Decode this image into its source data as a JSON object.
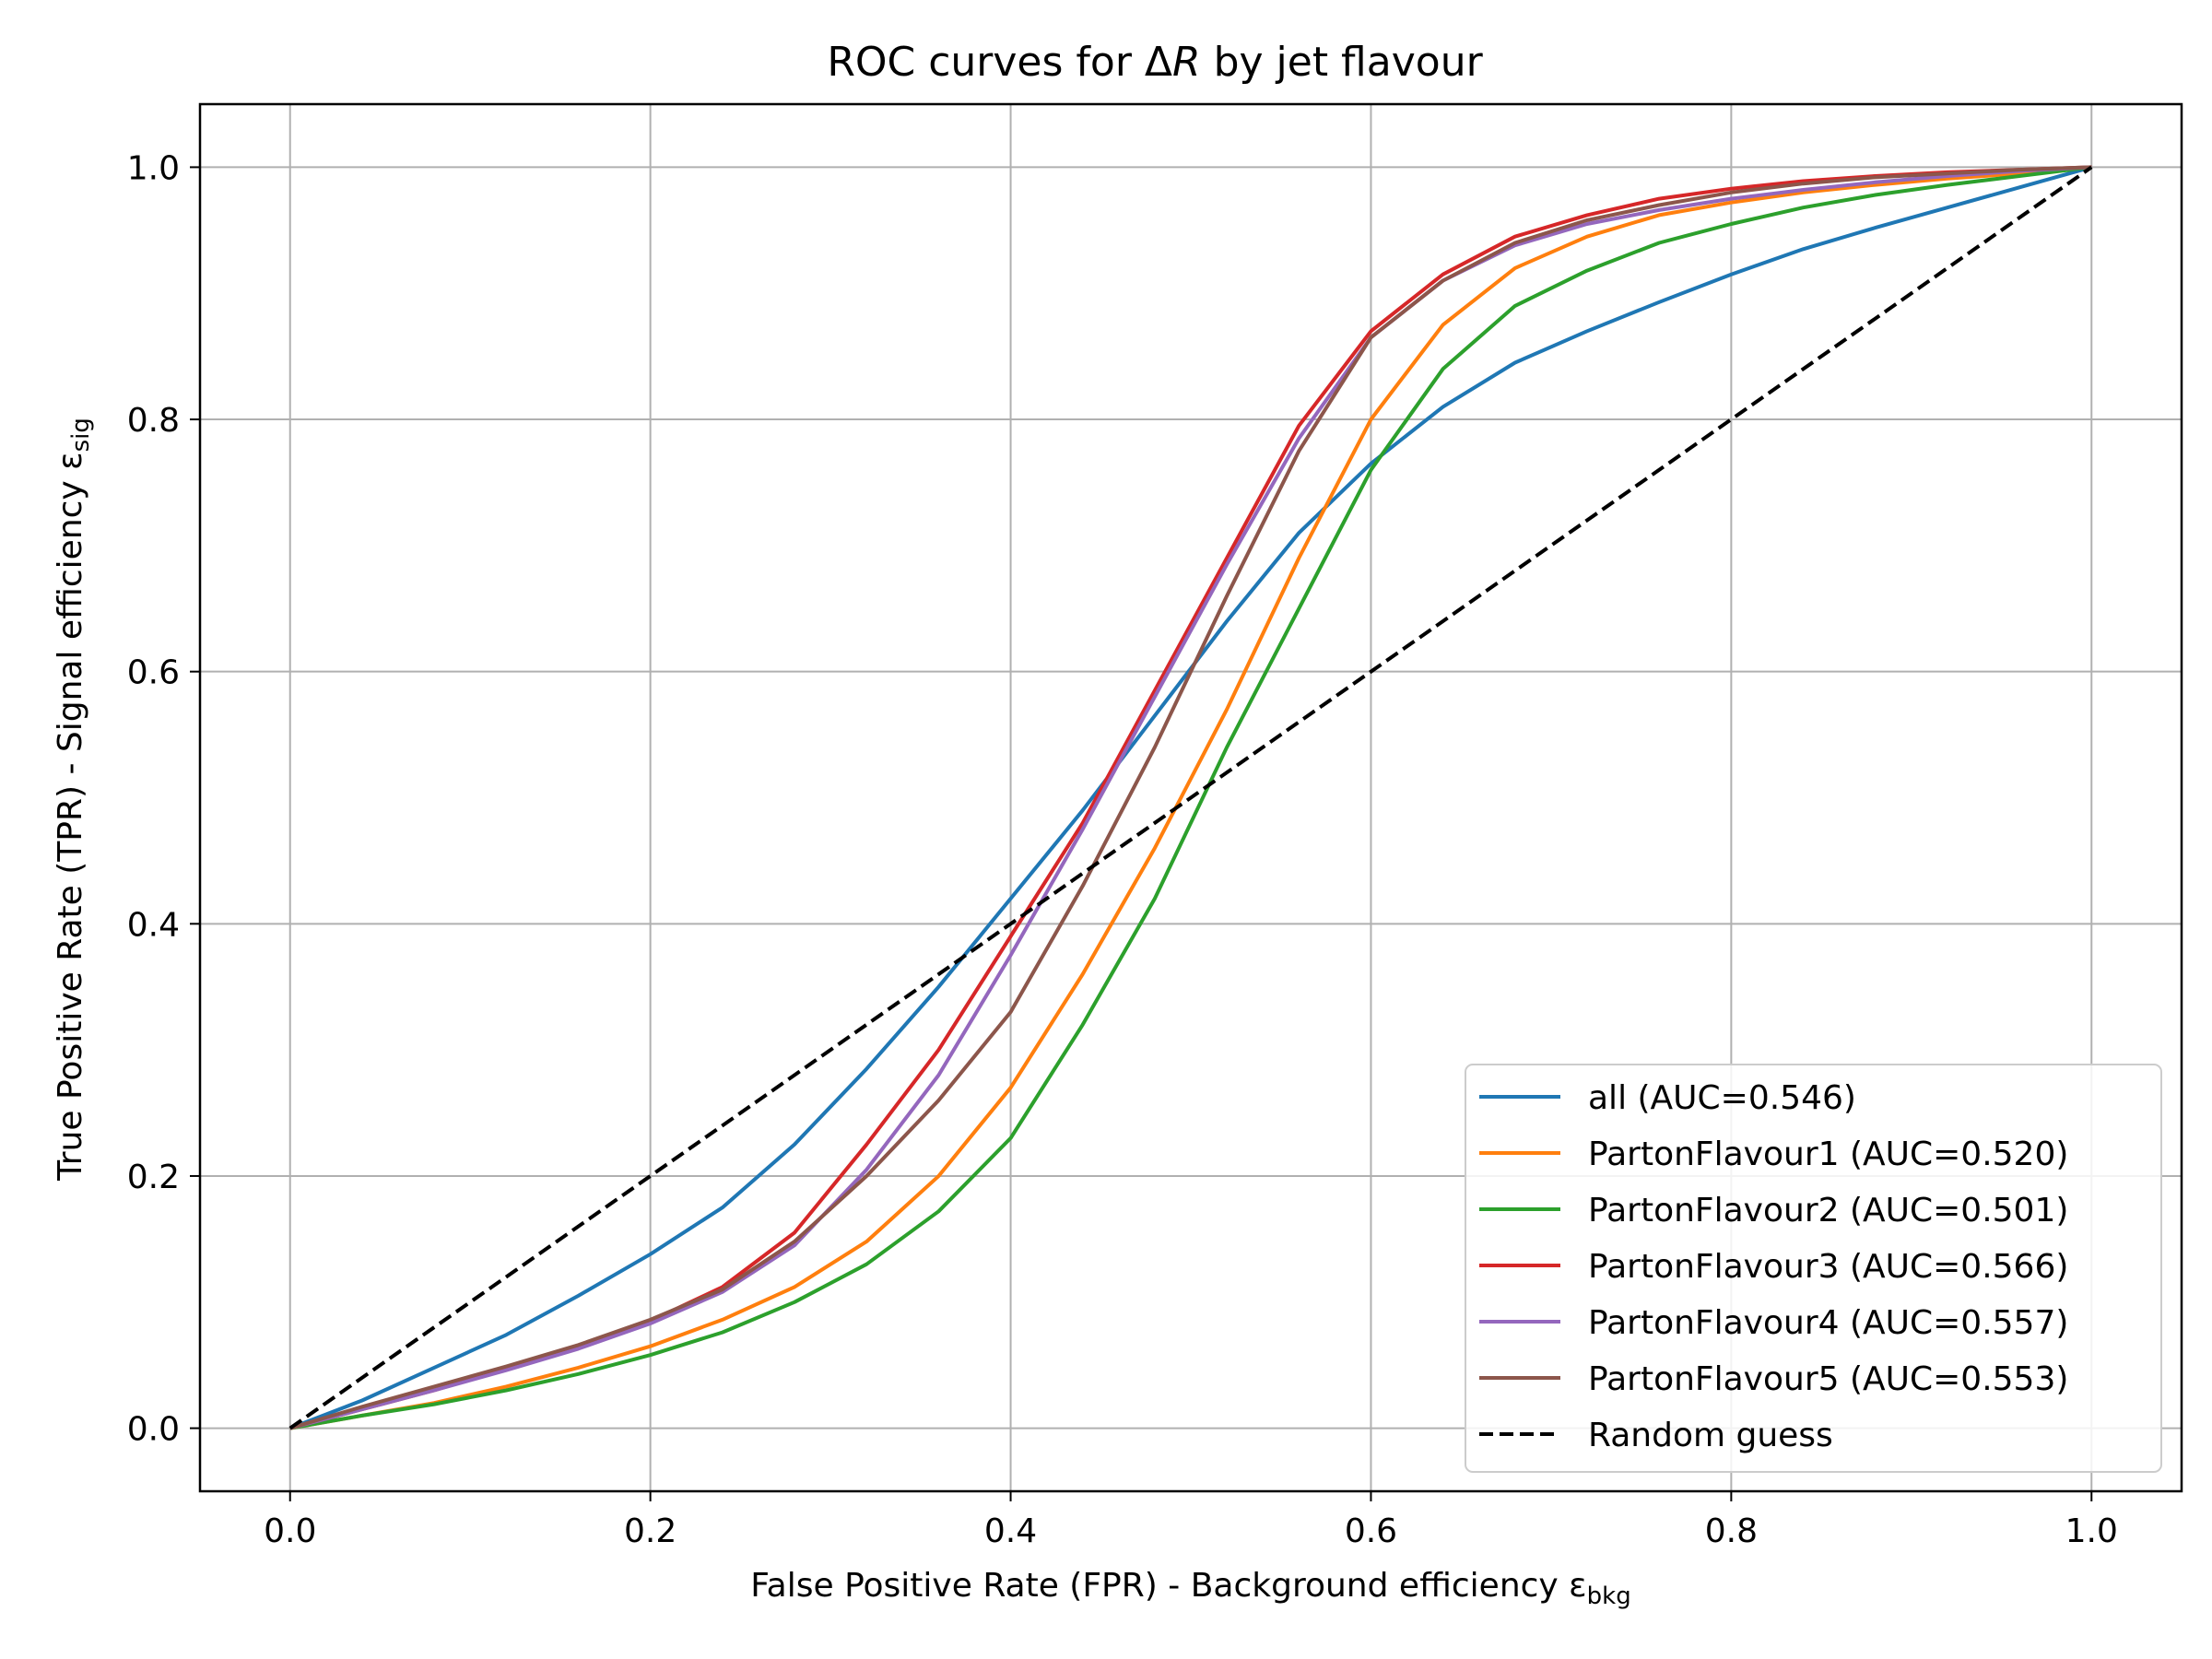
{
  "chart_data": {
    "type": "line",
    "title": "ROC curves for ΔR by jet flavour",
    "title_parts": {
      "prefix": "ROC curves for Δ",
      "italic": "R",
      "suffix": " by jet flavour"
    },
    "xlabel": "False Positive Rate (FPR) - Background efficiency ε",
    "xlabel_sub": "bkg",
    "ylabel": "True Positive Rate (TPR) - Signal efficiency ε",
    "ylabel_sub": "sig",
    "xlim": [
      -0.05,
      1.05
    ],
    "ylim": [
      -0.05,
      1.05
    ],
    "xticks": [
      0.0,
      0.2,
      0.4,
      0.6,
      0.8,
      1.0
    ],
    "yticks": [
      0.0,
      0.2,
      0.4,
      0.6,
      0.8,
      1.0
    ],
    "xtick_labels": [
      "0.0",
      "0.2",
      "0.4",
      "0.6",
      "0.8",
      "1.0"
    ],
    "ytick_labels": [
      "0.0",
      "0.2",
      "0.4",
      "0.6",
      "0.8",
      "1.0"
    ],
    "grid": true,
    "legend_position": "lower-right",
    "series": [
      {
        "name": "all (AUC=0.546)",
        "color": "#1f77b4",
        "dash": "solid",
        "x": [
          0.0,
          0.04,
          0.08,
          0.12,
          0.16,
          0.2,
          0.24,
          0.28,
          0.32,
          0.36,
          0.4,
          0.44,
          0.48,
          0.52,
          0.56,
          0.6,
          0.64,
          0.68,
          0.72,
          0.76,
          0.8,
          0.84,
          0.88,
          0.92,
          0.96,
          1.0
        ],
        "y": [
          0.0,
          0.022,
          0.048,
          0.074,
          0.105,
          0.138,
          0.175,
          0.225,
          0.285,
          0.35,
          0.42,
          0.49,
          0.565,
          0.64,
          0.71,
          0.765,
          0.81,
          0.845,
          0.87,
          0.893,
          0.915,
          0.935,
          0.952,
          0.968,
          0.984,
          1.0
        ]
      },
      {
        "name": "PartonFlavour1 (AUC=0.520)",
        "color": "#ff7f0e",
        "dash": "solid",
        "x": [
          0.0,
          0.04,
          0.08,
          0.12,
          0.16,
          0.2,
          0.24,
          0.28,
          0.32,
          0.36,
          0.4,
          0.44,
          0.48,
          0.52,
          0.56,
          0.6,
          0.64,
          0.68,
          0.72,
          0.76,
          0.8,
          0.84,
          0.88,
          0.92,
          0.96,
          1.0
        ],
        "y": [
          0.0,
          0.01,
          0.02,
          0.033,
          0.048,
          0.065,
          0.086,
          0.112,
          0.148,
          0.2,
          0.27,
          0.36,
          0.46,
          0.57,
          0.69,
          0.8,
          0.875,
          0.92,
          0.945,
          0.962,
          0.972,
          0.98,
          0.986,
          0.991,
          0.995,
          1.0
        ]
      },
      {
        "name": "PartonFlavour2 (AUC=0.501)",
        "color": "#2ca02c",
        "dash": "solid",
        "x": [
          0.0,
          0.04,
          0.08,
          0.12,
          0.16,
          0.2,
          0.24,
          0.28,
          0.32,
          0.36,
          0.4,
          0.44,
          0.48,
          0.52,
          0.56,
          0.6,
          0.64,
          0.68,
          0.72,
          0.76,
          0.8,
          0.84,
          0.88,
          0.92,
          0.96,
          1.0
        ],
        "y": [
          0.0,
          0.01,
          0.019,
          0.03,
          0.043,
          0.058,
          0.076,
          0.1,
          0.13,
          0.172,
          0.23,
          0.32,
          0.42,
          0.54,
          0.65,
          0.76,
          0.84,
          0.89,
          0.918,
          0.94,
          0.955,
          0.968,
          0.978,
          0.986,
          0.993,
          1.0
        ]
      },
      {
        "name": "PartonFlavour3 (AUC=0.566)",
        "color": "#d62728",
        "dash": "solid",
        "x": [
          0.0,
          0.04,
          0.08,
          0.12,
          0.16,
          0.2,
          0.24,
          0.28,
          0.32,
          0.36,
          0.4,
          0.44,
          0.48,
          0.52,
          0.56,
          0.6,
          0.64,
          0.68,
          0.72,
          0.76,
          0.8,
          0.84,
          0.88,
          0.92,
          0.96,
          1.0
        ],
        "y": [
          0.0,
          0.015,
          0.03,
          0.047,
          0.065,
          0.085,
          0.112,
          0.155,
          0.225,
          0.3,
          0.39,
          0.48,
          0.585,
          0.69,
          0.795,
          0.87,
          0.915,
          0.945,
          0.962,
          0.975,
          0.983,
          0.989,
          0.993,
          0.996,
          0.998,
          1.0
        ]
      },
      {
        "name": "PartonFlavour4 (AUC=0.557)",
        "color": "#9467bd",
        "dash": "solid",
        "x": [
          0.0,
          0.04,
          0.08,
          0.12,
          0.16,
          0.2,
          0.24,
          0.28,
          0.32,
          0.36,
          0.4,
          0.44,
          0.48,
          0.52,
          0.56,
          0.6,
          0.64,
          0.68,
          0.72,
          0.76,
          0.8,
          0.84,
          0.88,
          0.92,
          0.96,
          1.0
        ],
        "y": [
          0.0,
          0.015,
          0.03,
          0.046,
          0.063,
          0.083,
          0.108,
          0.145,
          0.205,
          0.28,
          0.375,
          0.475,
          0.58,
          0.685,
          0.785,
          0.865,
          0.91,
          0.938,
          0.955,
          0.966,
          0.975,
          0.982,
          0.988,
          0.993,
          0.997,
          1.0
        ]
      },
      {
        "name": "PartonFlavour5 (AUC=0.553)",
        "color": "#8c564b",
        "dash": "solid",
        "x": [
          0.0,
          0.04,
          0.08,
          0.12,
          0.16,
          0.2,
          0.24,
          0.28,
          0.32,
          0.36,
          0.4,
          0.44,
          0.48,
          0.52,
          0.56,
          0.6,
          0.64,
          0.68,
          0.72,
          0.76,
          0.8,
          0.84,
          0.88,
          0.92,
          0.96,
          1.0
        ],
        "y": [
          0.0,
          0.017,
          0.033,
          0.049,
          0.066,
          0.086,
          0.11,
          0.148,
          0.2,
          0.26,
          0.33,
          0.43,
          0.54,
          0.66,
          0.775,
          0.865,
          0.91,
          0.94,
          0.958,
          0.97,
          0.98,
          0.987,
          0.992,
          0.995,
          0.998,
          1.0
        ]
      },
      {
        "name": "Random guess",
        "color": "#000000",
        "dash": "dashed",
        "x": [
          0.0,
          1.0
        ],
        "y": [
          0.0,
          1.0
        ]
      }
    ]
  }
}
